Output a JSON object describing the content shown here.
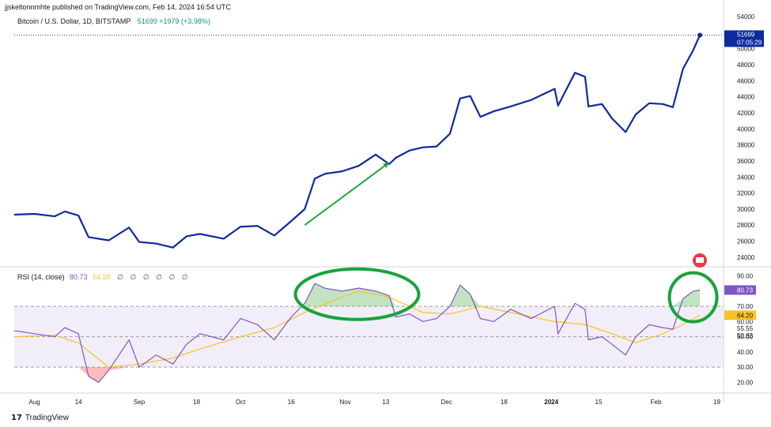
{
  "header": "jjskeltonnmhte published on TradingView.com, Feb 14, 2024 16:54 UTC",
  "symbol": {
    "name": "Bitcoin / U.S. Dollar, 1D, BITSTAMP",
    "last": "51699",
    "change": "+1979 (+3.98%)"
  },
  "rsi_header": {
    "label": "RSI (14, close)",
    "value": "80.73",
    "ma_value": "64.20",
    "dots": "∅ ∅ ∅ ∅ ∅ ∅"
  },
  "footer": {
    "logo": "17",
    "brand": "TradingView"
  },
  "colors": {
    "price_line": "#0d2a9e",
    "rsi_line": "#7e57c2",
    "rsi_ma": "#f7c325",
    "band_fill": "#ede7f6",
    "arrow": "#1fa83e",
    "circle": "#19a33b",
    "label_bg": "#0d2a9e"
  },
  "chart_data": [
    {
      "type": "line",
      "title": "Bitcoin / U.S. Dollar, 1D, BITSTAMP",
      "series": [
        {
          "name": "",
          "x": [
            "2023-07-26",
            "2023-08-01",
            "2023-08-07",
            "2023-08-10",
            "2023-08-14",
            "2023-08-17",
            "2023-08-23",
            "2023-08-29",
            "2023-09-01",
            "2023-09-06",
            "2023-09-11",
            "2023-09-15",
            "2023-09-19",
            "2023-09-26",
            "2023-10-01",
            "2023-10-06",
            "2023-10-11",
            "2023-10-16",
            "2023-10-20",
            "2023-10-23",
            "2023-10-26",
            "2023-10-31",
            "2023-11-05",
            "2023-11-10",
            "2023-11-14",
            "2023-11-16",
            "2023-11-20",
            "2023-11-24",
            "2023-11-28",
            "2023-12-02",
            "2023-12-05",
            "2023-12-08",
            "2023-12-11",
            "2023-12-15",
            "2023-12-20",
            "2023-12-26",
            "2024-01-02",
            "2024-01-03",
            "2024-01-08",
            "2024-01-11",
            "2024-01-12",
            "2024-01-16",
            "2024-01-19",
            "2024-01-23",
            "2024-01-26",
            "2024-01-30",
            "2024-02-03",
            "2024-02-06",
            "2024-02-09",
            "2024-02-12",
            "2024-02-14"
          ],
          "values": [
            29300,
            29400,
            29100,
            29700,
            29200,
            26500,
            26100,
            27700,
            25900,
            25700,
            25200,
            26600,
            26900,
            26300,
            27800,
            27900,
            26700,
            28500,
            30000,
            33800,
            34400,
            34700,
            35400,
            36800,
            35600,
            36400,
            37300,
            37700,
            37800,
            39400,
            43800,
            44100,
            41500,
            42200,
            42800,
            43600,
            45000,
            42900,
            47000,
            46500,
            42800,
            43100,
            41300,
            39600,
            41800,
            43200,
            43100,
            42700,
            47500,
            49800,
            51699
          ]
        }
      ],
      "ylim": [
        23000,
        54500
      ],
      "yticks": [
        24000,
        26000,
        28000,
        30000,
        32000,
        34000,
        36000,
        38000,
        40000,
        42000,
        44000,
        46000,
        48000,
        50000,
        52000,
        54000
      ],
      "last_label": "51699",
      "countdown": "07:05:29"
    },
    {
      "type": "line",
      "title": "RSI (14, close)",
      "series": [
        {
          "name": "",
          "x": [
            "2023-07-26",
            "2023-08-01",
            "2023-08-07",
            "2023-08-10",
            "2023-08-14",
            "2023-08-17",
            "2023-08-20",
            "2023-08-23",
            "2023-08-29",
            "2023-09-01",
            "2023-09-06",
            "2023-09-11",
            "2023-09-15",
            "2023-09-19",
            "2023-09-26",
            "2023-10-01",
            "2023-10-06",
            "2023-10-11",
            "2023-10-16",
            "2023-10-20",
            "2023-10-23",
            "2023-10-26",
            "2023-10-31",
            "2023-11-05",
            "2023-11-10",
            "2023-11-14",
            "2023-11-16",
            "2023-11-20",
            "2023-11-24",
            "2023-11-28",
            "2023-12-02",
            "2023-12-05",
            "2023-12-08",
            "2023-12-11",
            "2023-12-15",
            "2023-12-20",
            "2023-12-26",
            "2024-01-02",
            "2024-01-03",
            "2024-01-08",
            "2024-01-11",
            "2024-01-12",
            "2024-01-16",
            "2024-01-19",
            "2024-01-23",
            "2024-01-26",
            "2024-01-30",
            "2024-02-03",
            "2024-02-06",
            "2024-02-09",
            "2024-02-12",
            "2024-02-14"
          ],
          "values": [
            54,
            52,
            50,
            56,
            52,
            24,
            20,
            28,
            48,
            30,
            38,
            32,
            45,
            52,
            48,
            62,
            58,
            48,
            63,
            72,
            85,
            82,
            80,
            82,
            80,
            77,
            63,
            65,
            60,
            62,
            70,
            84,
            78,
            62,
            60,
            68,
            62,
            70,
            52,
            72,
            68,
            48,
            50,
            45,
            38,
            50,
            58,
            56,
            55,
            75,
            80,
            80.73
          ]
        },
        {
          "name": "",
          "x": [
            "2023-07-26",
            "2023-08-07",
            "2023-08-14",
            "2023-08-23",
            "2023-09-01",
            "2023-09-11",
            "2023-09-19",
            "2023-10-01",
            "2023-10-11",
            "2023-10-20",
            "2023-10-31",
            "2023-11-05",
            "2023-11-14",
            "2023-11-24",
            "2023-12-02",
            "2023-12-11",
            "2023-12-20",
            "2024-01-02",
            "2024-01-11",
            "2024-01-19",
            "2024-01-26",
            "2024-02-03",
            "2024-02-09",
            "2024-02-14"
          ],
          "values": [
            50,
            51,
            46,
            30,
            32,
            36,
            42,
            50,
            56,
            66,
            76,
            80,
            76,
            66,
            65,
            70,
            66,
            60,
            58,
            52,
            46,
            52,
            58,
            64.2
          ]
        }
      ],
      "ylim": [
        14,
        95
      ],
      "yticks": [
        20,
        30,
        40,
        50,
        60,
        70,
        80,
        90
      ],
      "bands": [
        30,
        50,
        70
      ],
      "badges": [
        "80.73",
        "64.20",
        "55.55",
        "50.83"
      ],
      "xticks": [
        "Aug",
        "14",
        "Sep",
        "18",
        "Oct",
        "16",
        "Nov",
        "13",
        "Dec",
        "18",
        "2024",
        "15",
        "Feb",
        "19"
      ]
    }
  ]
}
